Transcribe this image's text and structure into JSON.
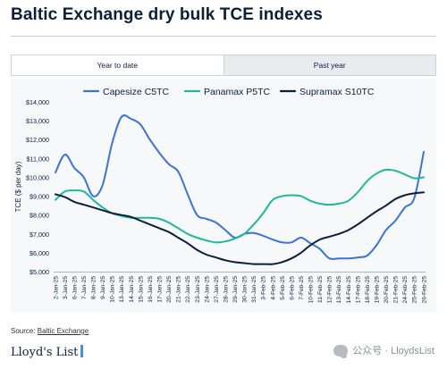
{
  "page": {
    "title": "Baltic Exchange dry bulk TCE indexes"
  },
  "tabs": [
    {
      "label": "Year to date",
      "active": true
    },
    {
      "label": "Past year",
      "active": false
    }
  ],
  "chart_data": {
    "type": "line",
    "title": "",
    "xlabel": "",
    "ylabel": "TCE ($ per day)",
    "ylim": [
      5000,
      14000
    ],
    "yticks": [
      "$5,000",
      "$6,000",
      "$7,000",
      "$8,000",
      "$9,000",
      "$10,000",
      "$11,000",
      "$12,000",
      "$13,000",
      "$14,000"
    ],
    "ytick_values": [
      5000,
      6000,
      7000,
      8000,
      9000,
      10000,
      11000,
      12000,
      13000,
      14000
    ],
    "grid": false,
    "legend_position": "top",
    "categories": [
      "2-Jan-25",
      "3-Jan-25",
      "6-Jan-25",
      "7-Jan-25",
      "8-Jan-25",
      "9-Jan-25",
      "10-Jan-25",
      "13-Jan-25",
      "14-Jan-25",
      "15-Jan-25",
      "16-Jan-25",
      "17-Jan-25",
      "20-Jan-25",
      "21-Jan-25",
      "22-Jan-25",
      "23-Jan-25",
      "24-Jan-25",
      "27-Jan-25",
      "28-Jan-25",
      "29-Jan-25",
      "30-Jan-25",
      "31-Jan-25",
      "3-Feb-25",
      "4-Feb-25",
      "5-Feb-25",
      "6-Feb-25",
      "7-Feb-25",
      "10-Feb-25",
      "11-Feb-25",
      "12-Feb-25",
      "13-Feb-25",
      "14-Feb-25",
      "17-Feb-25",
      "18-Feb-25",
      "19-Feb-25",
      "20-Feb-25",
      "21-Feb-25",
      "24-Feb-25",
      "25-Feb-25",
      "26-Feb-25"
    ],
    "series": [
      {
        "name": "Capesize C5TC",
        "color": "#3b73d6",
        "values": [
          10250,
          11200,
          10500,
          10000,
          9000,
          9600,
          11800,
          13200,
          13100,
          12800,
          12000,
          11300,
          10700,
          10300,
          9100,
          8000,
          7800,
          7600,
          7200,
          6800,
          7000,
          7050,
          6900,
          6700,
          6550,
          6550,
          6800,
          6500,
          6200,
          5700,
          5700,
          5700,
          5750,
          5850,
          6400,
          7200,
          7700,
          8400,
          8900,
          11350
        ]
      },
      {
        "name": "Panamax P5TC",
        "color": "#1fb89a",
        "values": [
          8800,
          9250,
          9300,
          9250,
          8800,
          8400,
          8100,
          7950,
          7850,
          7850,
          7850,
          7800,
          7600,
          7300,
          7000,
          6800,
          6650,
          6550,
          6600,
          6750,
          7000,
          7500,
          8100,
          8800,
          9000,
          9050,
          9000,
          8750,
          8600,
          8550,
          8600,
          8750,
          9200,
          9800,
          10200,
          10400,
          10350,
          10150,
          9950,
          10000
        ]
      },
      {
        "name": "Supramax S10TC",
        "color": "#0b1f3a",
        "values": [
          9100,
          8950,
          8700,
          8550,
          8400,
          8250,
          8100,
          8000,
          7900,
          7700,
          7500,
          7300,
          7100,
          6800,
          6500,
          6150,
          5900,
          5750,
          5600,
          5500,
          5450,
          5400,
          5400,
          5400,
          5500,
          5700,
          6000,
          6400,
          6700,
          6850,
          7000,
          7200,
          7500,
          7850,
          8200,
          8500,
          8850,
          9050,
          9150,
          9200
        ]
      }
    ]
  },
  "footer": {
    "source_prefix": "Source: ",
    "source_link": "Baltic Exchange",
    "logo_text": "Lloyd's List",
    "watermark": "公众号 · LloydsList"
  }
}
